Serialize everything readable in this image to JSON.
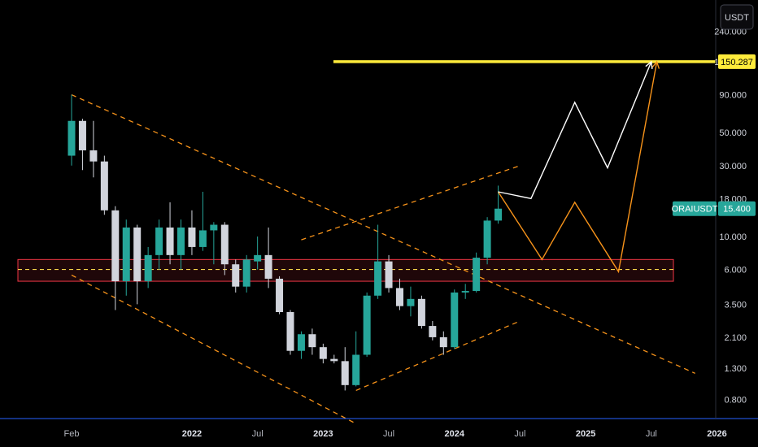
{
  "chart_data": {
    "type": "candlestick",
    "symbol": "ORAIUSDT",
    "currency": "USDT",
    "last_price": "15.400",
    "target_price": "150.287",
    "y_scale": "log",
    "ylim": [
      0.6,
      310
    ],
    "y_ticks": [
      "0.800",
      "1.300",
      "2.100",
      "3.500",
      "6.000",
      "10.000",
      "18.000",
      "30.000",
      "50.000",
      "90.000",
      "150.000",
      "240.000"
    ],
    "x_ticks": [
      {
        "label": "Feb",
        "month": 0,
        "bold": false
      },
      {
        "label": "2022",
        "month": 11,
        "bold": true
      },
      {
        "label": "Jul",
        "month": 17,
        "bold": false
      },
      {
        "label": "2023",
        "month": 23,
        "bold": true
      },
      {
        "label": "Jul",
        "month": 29,
        "bold": false
      },
      {
        "label": "2024",
        "month": 35,
        "bold": true
      },
      {
        "label": "Jul",
        "month": 41,
        "bold": false
      },
      {
        "label": "2025",
        "month": 47,
        "bold": true
      },
      {
        "label": "Jul",
        "month": 53,
        "bold": false
      },
      {
        "label": "2026",
        "month": 59,
        "bold": true
      }
    ],
    "candles": [
      {
        "m": 0,
        "o": 35,
        "h": 90,
        "l": 30,
        "c": 60
      },
      {
        "m": 1,
        "o": 60,
        "h": 62,
        "l": 28,
        "c": 38
      },
      {
        "m": 2,
        "o": 38,
        "h": 60,
        "l": 25,
        "c": 32
      },
      {
        "m": 3,
        "o": 32,
        "h": 35,
        "l": 14,
        "c": 15
      },
      {
        "m": 4,
        "o": 15,
        "h": 16,
        "l": 3.2,
        "c": 5.0
      },
      {
        "m": 5,
        "o": 5.0,
        "h": 13,
        "l": 4.0,
        "c": 11.5
      },
      {
        "m": 6,
        "o": 11.5,
        "h": 12,
        "l": 3.5,
        "c": 5.0
      },
      {
        "m": 7,
        "o": 5.0,
        "h": 8.5,
        "l": 4.5,
        "c": 7.5
      },
      {
        "m": 8,
        "o": 7.5,
        "h": 13,
        "l": 6.0,
        "c": 11.5
      },
      {
        "m": 9,
        "o": 11.5,
        "h": 17,
        "l": 6.5,
        "c": 7.5
      },
      {
        "m": 10,
        "o": 7.5,
        "h": 13,
        "l": 6.0,
        "c": 11.5
      },
      {
        "m": 11,
        "o": 11.5,
        "h": 15,
        "l": 7.5,
        "c": 8.5
      },
      {
        "m": 12,
        "o": 8.5,
        "h": 20,
        "l": 8.0,
        "c": 11.0
      },
      {
        "m": 13,
        "o": 11.0,
        "h": 12.5,
        "l": 6.5,
        "c": 12.0
      },
      {
        "m": 14,
        "o": 12.0,
        "h": 12.5,
        "l": 5.5,
        "c": 6.5
      },
      {
        "m": 15,
        "o": 6.5,
        "h": 7.0,
        "l": 4.2,
        "c": 4.6
      },
      {
        "m": 16,
        "o": 4.6,
        "h": 7.5,
        "l": 4.2,
        "c": 7.0
      },
      {
        "m": 17,
        "o": 6.8,
        "h": 10,
        "l": 6.0,
        "c": 7.5
      },
      {
        "m": 18,
        "o": 7.5,
        "h": 11.5,
        "l": 4.5,
        "c": 5.2
      },
      {
        "m": 19,
        "o": 5.2,
        "h": 5.4,
        "l": 3.0,
        "c": 3.1
      },
      {
        "m": 20,
        "o": 3.1,
        "h": 3.2,
        "l": 1.6,
        "c": 1.7
      },
      {
        "m": 21,
        "o": 1.7,
        "h": 2.3,
        "l": 1.5,
        "c": 2.2
      },
      {
        "m": 22,
        "o": 2.2,
        "h": 2.4,
        "l": 1.6,
        "c": 1.8
      },
      {
        "m": 23,
        "o": 1.8,
        "h": 1.9,
        "l": 1.4,
        "c": 1.5
      },
      {
        "m": 24,
        "o": 1.5,
        "h": 1.6,
        "l": 1.4,
        "c": 1.45
      },
      {
        "m": 25,
        "o": 1.45,
        "h": 1.8,
        "l": 0.92,
        "c": 1.0
      },
      {
        "m": 26,
        "o": 1.0,
        "h": 2.3,
        "l": 0.98,
        "c": 1.6
      },
      {
        "m": 27,
        "o": 1.6,
        "h": 4.2,
        "l": 1.55,
        "c": 4.0
      },
      {
        "m": 28,
        "o": 4.0,
        "h": 12.0,
        "l": 3.8,
        "c": 6.8
      },
      {
        "m": 29,
        "o": 6.8,
        "h": 7.5,
        "l": 4.2,
        "c": 4.5
      },
      {
        "m": 30,
        "o": 4.5,
        "h": 5.2,
        "l": 3.2,
        "c": 3.4
      },
      {
        "m": 31,
        "o": 3.4,
        "h": 4.6,
        "l": 2.9,
        "c": 3.8
      },
      {
        "m": 32,
        "o": 3.8,
        "h": 4.0,
        "l": 2.4,
        "c": 2.5
      },
      {
        "m": 33,
        "o": 2.5,
        "h": 2.7,
        "l": 2.0,
        "c": 2.1
      },
      {
        "m": 34,
        "o": 2.1,
        "h": 2.3,
        "l": 1.6,
        "c": 1.8
      },
      {
        "m": 35,
        "o": 1.8,
        "h": 4.4,
        "l": 1.75,
        "c": 4.2
      },
      {
        "m": 36,
        "o": 4.2,
        "h": 4.8,
        "l": 3.8,
        "c": 4.3
      },
      {
        "m": 37,
        "o": 4.3,
        "h": 7.8,
        "l": 4.2,
        "c": 7.2
      },
      {
        "m": 38,
        "o": 7.2,
        "h": 13.5,
        "l": 6.5,
        "c": 12.8
      },
      {
        "m": 39,
        "o": 12.8,
        "h": 22,
        "l": 12.2,
        "c": 15.4
      }
    ],
    "annotations": {
      "target_line": {
        "value": 150.287,
        "from_month": 24,
        "to_month": 61
      },
      "support_zone": {
        "low": 5.0,
        "high": 7.0,
        "mid": 6.0
      },
      "white_path": [
        [
          39,
          20
        ],
        [
          42,
          18
        ],
        [
          46,
          80
        ],
        [
          49,
          29
        ],
        [
          53,
          150
        ]
      ],
      "orange_path": [
        [
          39,
          20
        ],
        [
          43,
          7.0
        ],
        [
          46,
          17
        ],
        [
          50,
          5.8
        ],
        [
          53.5,
          150
        ]
      ],
      "dashed_lines": [
        {
          "from": [
            0,
            90
          ],
          "to": [
            57,
            1.2
          ]
        },
        {
          "from": [
            0,
            5.5
          ],
          "to": [
            26,
            0.55
          ]
        },
        {
          "from": [
            21,
            9.5
          ],
          "to": [
            41,
            30
          ]
        },
        {
          "from": [
            26,
            0.92
          ],
          "to": [
            41,
            2.7
          ]
        }
      ]
    }
  }
}
